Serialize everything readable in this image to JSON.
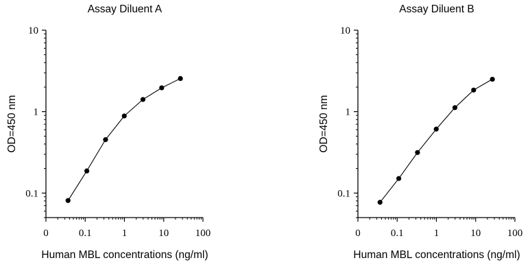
{
  "chart_data": [
    {
      "type": "line",
      "title": "Assay Diluent A",
      "xlabel": "Human MBL concentrations (ng/ml)",
      "ylabel": "OD=450 nm",
      "x_scale": "log",
      "y_scale": "log",
      "xlim": [
        0.01,
        100
      ],
      "ylim": [
        0.05,
        10
      ],
      "x_ticks": [
        {
          "value": 0.01,
          "label": "0"
        },
        {
          "value": 0.1,
          "label": "0.1"
        },
        {
          "value": 1,
          "label": "1"
        },
        {
          "value": 10,
          "label": "10"
        },
        {
          "value": 100,
          "label": "100"
        }
      ],
      "y_ticks": [
        {
          "value": 0.1,
          "label": "0.1"
        },
        {
          "value": 1,
          "label": "1"
        },
        {
          "value": 10,
          "label": "10"
        }
      ],
      "marker_color": "#000000",
      "line_color": "#000000",
      "grid": false,
      "series": [
        {
          "x": [
            0.0366,
            0.11,
            0.33,
            0.99,
            2.96,
            8.89,
            26.67
          ],
          "y": [
            0.081,
            0.187,
            0.453,
            0.885,
            1.41,
            1.96,
            2.55
          ]
        }
      ]
    },
    {
      "type": "line",
      "title": "Assay Diluent B",
      "xlabel": "Human MBL concentrations (ng/ml)",
      "ylabel": "OD=450 nm",
      "x_scale": "log",
      "y_scale": "log",
      "xlim": [
        0.01,
        100
      ],
      "ylim": [
        0.05,
        10
      ],
      "x_ticks": [
        {
          "value": 0.01,
          "label": "0"
        },
        {
          "value": 0.1,
          "label": "0.1"
        },
        {
          "value": 1,
          "label": "1"
        },
        {
          "value": 10,
          "label": "10"
        },
        {
          "value": 100,
          "label": "100"
        }
      ],
      "y_ticks": [
        {
          "value": 0.1,
          "label": "0.1"
        },
        {
          "value": 1,
          "label": "1"
        },
        {
          "value": 10,
          "label": "10"
        }
      ],
      "marker_color": "#000000",
      "line_color": "#000000",
      "grid": false,
      "series": [
        {
          "x": [
            0.0366,
            0.11,
            0.33,
            0.99,
            2.96,
            8.89,
            26.67
          ],
          "y": [
            0.077,
            0.151,
            0.315,
            0.61,
            1.12,
            1.84,
            2.5
          ]
        }
      ]
    }
  ]
}
